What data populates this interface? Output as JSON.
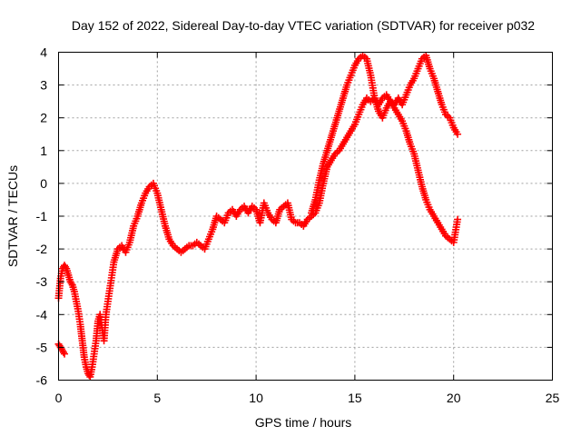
{
  "chart_data": {
    "type": "scatter",
    "title": "Day 152 of 2022, Sidereal Day-to-day VTEC variation (SDTVAR) for receiver p032",
    "xlabel": "GPS time / hours",
    "ylabel": "SDTVAR / TECUs",
    "xlim": [
      0,
      25
    ],
    "ylim": [
      -6,
      4
    ],
    "xticks": [
      "0",
      "5",
      "10",
      "15",
      "20",
      "25"
    ],
    "yticks": [
      "-6",
      "-5",
      "-4",
      "-3",
      "-2",
      "-1",
      "0",
      "1",
      "2",
      "3",
      "4"
    ],
    "grid": true,
    "marker": "+",
    "series": [
      {
        "color": "#ff0000",
        "x": [
          0.0,
          0.1,
          0.2,
          0.3,
          0.4,
          0.5,
          0.6,
          0.7,
          0.8,
          0.9,
          1.0,
          1.1,
          1.2,
          1.3,
          1.4,
          1.5,
          1.6,
          1.7,
          1.8,
          1.9,
          2.0,
          2.1,
          2.2,
          2.3,
          2.4,
          2.5,
          2.6,
          2.7,
          2.8,
          2.9,
          3.0,
          3.2,
          3.4,
          3.6,
          3.8,
          4.0,
          4.2,
          4.4,
          4.6,
          4.8,
          5.0,
          5.2,
          5.4,
          5.6,
          5.8,
          6.0,
          6.2,
          6.4,
          6.6,
          6.8,
          7.0,
          7.2,
          7.4,
          7.6,
          7.8,
          8.0,
          8.2,
          8.4,
          8.6,
          8.8,
          9.0,
          9.2,
          9.4,
          9.6,
          9.8,
          10.0,
          10.2,
          10.4,
          10.6,
          10.8,
          11.0,
          11.2,
          11.4,
          11.6,
          11.8,
          12.0,
          12.2,
          12.4,
          12.6,
          12.8,
          13.0,
          13.2,
          13.4,
          13.6,
          13.8,
          14.0,
          14.2,
          14.4,
          14.6,
          14.8,
          15.0,
          15.2,
          15.4,
          15.6,
          15.8,
          16.0,
          16.2,
          16.4,
          16.6,
          16.8,
          17.0,
          17.2,
          17.4,
          17.6,
          17.8,
          18.0,
          18.2,
          18.4,
          18.6,
          18.8,
          19.0,
          19.2,
          19.4,
          19.6,
          19.8,
          20.0,
          20.2
        ],
        "y": [
          -3.5,
          -2.9,
          -2.6,
          -2.5,
          -2.6,
          -2.8,
          -3.0,
          -3.1,
          -3.3,
          -3.6,
          -3.9,
          -4.3,
          -4.8,
          -5.3,
          -5.6,
          -5.8,
          -5.9,
          -5.6,
          -5.2,
          -4.8,
          -4.2,
          -4.0,
          -4.4,
          -4.8,
          -4.0,
          -3.6,
          -3.2,
          -2.8,
          -2.4,
          -2.2,
          -2.0,
          -1.9,
          -2.1,
          -1.8,
          -1.3,
          -1.0,
          -0.6,
          -0.3,
          -0.1,
          0.0,
          -0.3,
          -0.8,
          -1.3,
          -1.7,
          -1.9,
          -2.0,
          -2.1,
          -2.0,
          -1.9,
          -1.9,
          -1.8,
          -1.9,
          -2.0,
          -1.7,
          -1.4,
          -1.0,
          -1.1,
          -1.2,
          -0.9,
          -0.8,
          -1.0,
          -0.8,
          -0.7,
          -0.9,
          -0.7,
          -0.8,
          -1.2,
          -0.6,
          -0.9,
          -1.1,
          -1.2,
          -0.8,
          -0.7,
          -0.6,
          -1.1,
          -1.2,
          -1.2,
          -1.3,
          -1.1,
          -1.0,
          -0.9,
          -0.6,
          0.0,
          0.5,
          0.7,
          0.9,
          1.0,
          1.2,
          1.4,
          1.6,
          1.8,
          2.1,
          2.4,
          2.6,
          2.5,
          2.6,
          2.4,
          2.6,
          2.7,
          2.5,
          2.4,
          2.6,
          2.4,
          2.7,
          3.0,
          3.2,
          3.5,
          3.8,
          3.9,
          3.5,
          3.2,
          2.8,
          2.4,
          2.1,
          2.0,
          1.7,
          1.5
        ]
      },
      {
        "color": "#ff0000",
        "x": [
          0.0,
          0.1,
          0.2,
          0.3,
          12.8,
          13.0,
          13.2,
          13.4,
          13.6,
          13.8,
          14.0,
          14.2,
          14.4,
          14.6,
          14.8,
          15.0,
          15.2,
          15.4,
          15.6,
          15.8,
          16.0,
          16.2,
          16.4,
          16.6,
          16.8,
          17.0,
          17.2,
          17.4,
          17.6,
          17.8,
          18.0,
          18.2,
          18.4,
          18.6,
          18.8,
          19.0,
          19.2,
          19.4,
          19.6,
          19.8,
          20.0,
          20.2
        ],
        "y": [
          -4.9,
          -5.0,
          -5.1,
          -5.2,
          -0.9,
          -0.5,
          0.1,
          0.6,
          1.0,
          1.4,
          1.8,
          2.2,
          2.6,
          3.0,
          3.3,
          3.6,
          3.8,
          3.9,
          3.8,
          3.3,
          2.6,
          2.2,
          2.0,
          2.3,
          2.5,
          2.3,
          2.1,
          1.9,
          1.6,
          1.2,
          0.9,
          0.4,
          -0.1,
          -0.5,
          -0.8,
          -1.0,
          -1.2,
          -1.4,
          -1.6,
          -1.7,
          -1.8,
          -1.1
        ]
      }
    ]
  }
}
